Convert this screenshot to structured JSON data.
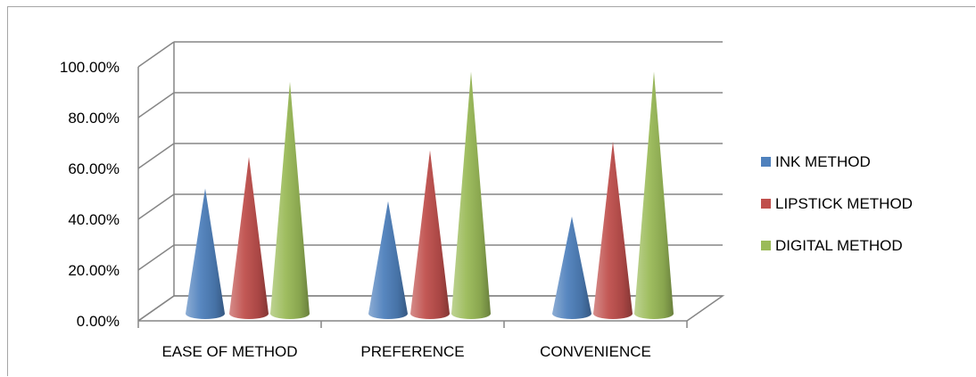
{
  "chart_data": {
    "type": "bar",
    "style": "3d-cone",
    "categories": [
      "EASE OF METHOD",
      "PREFERENCE",
      "CONVENIENCE"
    ],
    "series": [
      {
        "name": "INK METHOD",
        "color": "#4f81bd",
        "values": [
          50.0,
          45.0,
          39.0
        ]
      },
      {
        "name": "LIPSTICK METHOD",
        "color": "#c0504d",
        "values": [
          62.5,
          65.0,
          68.5
        ]
      },
      {
        "name": "DIGITAL METHOD",
        "color": "#9bbb59",
        "values": [
          92.0,
          96.0,
          96.0
        ]
      }
    ],
    "y_ticks": [
      "0.00%",
      "20.00%",
      "40.00%",
      "60.00%",
      "80.00%",
      "100.00%"
    ],
    "ylim": [
      0,
      100
    ],
    "grid": true,
    "legend_position": "right"
  }
}
